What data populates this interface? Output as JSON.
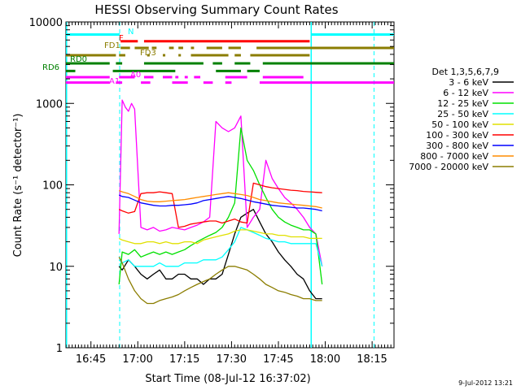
{
  "chart_data": {
    "type": "line",
    "title": "HESSI Observing Summary Count Rates",
    "xlabel": "Start Time (08-Jul-12 16:37:02)",
    "ylabel": "Count Rate (s⁻¹ detector⁻¹)",
    "y_scale": "log",
    "ylim": [
      1,
      10000
    ],
    "xlim_minutes": [
      0,
      105
    ],
    "x_ticks": [
      {
        "t": 7.97,
        "label": "16:45"
      },
      {
        "t": 22.97,
        "label": "17:00"
      },
      {
        "t": 37.97,
        "label": "17:15"
      },
      {
        "t": 52.97,
        "label": "17:30"
      },
      {
        "t": 67.97,
        "label": "17:45"
      },
      {
        "t": 82.97,
        "label": "18:00"
      },
      {
        "t": 97.97,
        "label": "18:15"
      }
    ],
    "y_ticks": [
      {
        "v": 1,
        "label": "1"
      },
      {
        "v": 10,
        "label": "10"
      },
      {
        "v": 100,
        "label": "100"
      },
      {
        "v": 1000,
        "label": "1000"
      },
      {
        "v": 10000,
        "label": "10000"
      }
    ],
    "grid": false,
    "legend_title": "Det 1,3,5,6,7,9",
    "legend_position": "right",
    "series": [
      {
        "name": "3 - 6 keV",
        "color": "#000000",
        "x": [
          17,
          18,
          20,
          22,
          24,
          26,
          28,
          30,
          32,
          34,
          36,
          38,
          40,
          42,
          44,
          46,
          48,
          50,
          52,
          54,
          56,
          58,
          60,
          62,
          64,
          66,
          68,
          70,
          72,
          74,
          76,
          78,
          80,
          82
        ],
        "y": [
          10,
          9,
          12,
          10,
          8,
          7,
          8,
          9,
          7,
          7,
          8,
          8,
          7,
          7,
          6,
          7,
          7,
          8,
          14,
          25,
          40,
          45,
          50,
          35,
          25,
          20,
          15,
          12,
          10,
          8,
          7,
          5,
          4,
          4
        ]
      },
      {
        "name": "6 - 12 keV",
        "color": "#ff00ff",
        "x": [
          17,
          18,
          19,
          20,
          21,
          22,
          24,
          26,
          28,
          30,
          32,
          34,
          36,
          38,
          40,
          42,
          44,
          46,
          48,
          50,
          52,
          54,
          56,
          58,
          60,
          62,
          64,
          66,
          68,
          70,
          72,
          74,
          76,
          78,
          80,
          82
        ],
        "y": [
          25,
          1100,
          900,
          800,
          1000,
          850,
          30,
          28,
          30,
          27,
          28,
          30,
          29,
          28,
          30,
          32,
          35,
          40,
          600,
          500,
          450,
          500,
          700,
          30,
          40,
          50,
          200,
          120,
          90,
          70,
          60,
          50,
          40,
          30,
          25,
          10
        ]
      },
      {
        "name": "12 - 25 keV",
        "color": "#00e000",
        "x": [
          17,
          18,
          20,
          22,
          24,
          26,
          28,
          30,
          32,
          34,
          36,
          38,
          40,
          42,
          44,
          46,
          48,
          50,
          52,
          54,
          56,
          58,
          60,
          62,
          64,
          66,
          68,
          70,
          72,
          74,
          76,
          78,
          80,
          82
        ],
        "y": [
          6,
          15,
          14,
          16,
          13,
          14,
          15,
          14,
          15,
          14,
          15,
          16,
          18,
          20,
          22,
          24,
          26,
          30,
          40,
          60,
          500,
          200,
          150,
          100,
          70,
          50,
          40,
          35,
          32,
          30,
          28,
          28,
          25,
          6
        ]
      },
      {
        "name": "25 - 50 keV",
        "color": "#00ffff",
        "x": [
          17,
          18,
          20,
          22,
          24,
          26,
          28,
          30,
          32,
          34,
          36,
          38,
          40,
          42,
          44,
          46,
          48,
          50,
          52,
          54,
          56,
          58,
          60,
          62,
          64,
          66,
          68,
          70,
          72,
          74,
          76,
          78,
          80,
          82
        ],
        "y": [
          12,
          11,
          12,
          10,
          10,
          10,
          10,
          11,
          10,
          10,
          10,
          11,
          11,
          11,
          12,
          12,
          12,
          13,
          16,
          20,
          30,
          28,
          26,
          24,
          22,
          21,
          20,
          20,
          19,
          19,
          19,
          19,
          19,
          10
        ]
      },
      {
        "name": "50 - 100 keV",
        "color": "#e0e000",
        "x": [
          17,
          18,
          20,
          22,
          24,
          26,
          28,
          30,
          32,
          34,
          36,
          38,
          40,
          42,
          44,
          46,
          48,
          50,
          52,
          54,
          56,
          58,
          60,
          62,
          64,
          66,
          68,
          70,
          72,
          74,
          76,
          78,
          80,
          82
        ],
        "y": [
          22,
          21,
          20,
          19,
          19,
          20,
          20,
          19,
          20,
          19,
          19,
          20,
          20,
          19,
          21,
          22,
          23,
          24,
          25,
          27,
          28,
          28,
          27,
          26,
          25,
          25,
          24,
          24,
          23,
          23,
          23,
          22,
          22,
          22
        ]
      },
      {
        "name": "100 - 300 keV",
        "color": "#ff0000",
        "x": [
          17,
          18,
          20,
          22,
          24,
          26,
          28,
          30,
          32,
          34,
          36,
          38,
          40,
          42,
          44,
          46,
          48,
          50,
          52,
          54,
          56,
          58,
          60,
          62,
          64,
          66,
          68,
          70,
          72,
          74,
          76,
          78,
          80,
          82
        ],
        "y": [
          50,
          48,
          45,
          47,
          78,
          80,
          80,
          82,
          80,
          78,
          30,
          31,
          33,
          34,
          35,
          36,
          36,
          34,
          36,
          38,
          35,
          34,
          105,
          100,
          95,
          92,
          90,
          88,
          86,
          85,
          83,
          82,
          81,
          80
        ]
      },
      {
        "name": "300 - 800 keV",
        "color": "#0000ff",
        "x": [
          17,
          18,
          20,
          22,
          24,
          26,
          28,
          30,
          32,
          34,
          36,
          38,
          40,
          42,
          44,
          46,
          48,
          50,
          52,
          54,
          56,
          58,
          60,
          62,
          64,
          66,
          68,
          70,
          72,
          74,
          76,
          78,
          80,
          82
        ],
        "y": [
          75,
          72,
          70,
          65,
          60,
          58,
          56,
          55,
          55,
          56,
          56,
          57,
          58,
          60,
          64,
          66,
          68,
          70,
          72,
          70,
          68,
          65,
          62,
          60,
          58,
          56,
          55,
          54,
          53,
          52,
          52,
          51,
          50,
          48
        ]
      },
      {
        "name": "800 - 7000 keV",
        "color": "#ff8c00",
        "x": [
          17,
          18,
          20,
          22,
          24,
          26,
          28,
          30,
          32,
          34,
          36,
          38,
          40,
          42,
          44,
          46,
          48,
          50,
          52,
          54,
          56,
          58,
          60,
          62,
          64,
          66,
          68,
          70,
          72,
          74,
          76,
          78,
          80,
          82
        ],
        "y": [
          85,
          82,
          78,
          72,
          66,
          63,
          62,
          62,
          63,
          64,
          65,
          66,
          68,
          70,
          72,
          74,
          76,
          78,
          80,
          78,
          76,
          74,
          70,
          66,
          64,
          62,
          60,
          59,
          58,
          57,
          56,
          55,
          54,
          52
        ]
      },
      {
        "name": "7000 - 20000 keV",
        "color": "#8b7d00",
        "x": [
          17,
          18,
          20,
          22,
          24,
          26,
          28,
          30,
          32,
          34,
          36,
          38,
          40,
          42,
          44,
          46,
          48,
          50,
          52,
          54,
          56,
          58,
          60,
          62,
          64,
          66,
          68,
          70,
          72,
          74,
          76,
          78,
          80,
          82
        ],
        "y": [
          13,
          11,
          7,
          5,
          4,
          3.5,
          3.5,
          3.8,
          4,
          4.2,
          4.5,
          5,
          5.5,
          6,
          6.5,
          7,
          8,
          9,
          10,
          10,
          9.5,
          9,
          8,
          7,
          6,
          5.5,
          5,
          4.8,
          4.5,
          4.3,
          4,
          4,
          3.8,
          3.8
        ]
      }
    ],
    "night_intervals": [
      [
        0,
        0.2
      ],
      [
        78.5,
        105
      ]
    ],
    "saa_markers": [
      17.2,
      98.6
    ],
    "flag_labels": [
      {
        "label": "N",
        "color": "#00ffff"
      },
      {
        "label": "F",
        "color": "#ff0000"
      },
      {
        "label": "FD1",
        "color": "#8b7d00"
      },
      {
        "label": "FD3",
        "color": "#8b7d00"
      },
      {
        "label": "RD0",
        "color": "#008000"
      },
      {
        "label": "RD6",
        "color": "#008000"
      },
      {
        "label": "A0",
        "color": "#ff00ff"
      },
      {
        "label": "A1",
        "color": "#ff00ff"
      }
    ],
    "flag_bars": [
      {
        "color": "#00ffff",
        "value": 7000,
        "segments": [
          [
            0,
            17.2
          ],
          [
            78.5,
            105
          ]
        ]
      },
      {
        "color": "#ff0000",
        "value": 5800,
        "segments": [
          [
            17.5,
            23
          ],
          [
            25,
            78
          ]
        ]
      },
      {
        "color": "#8b7d00",
        "value": 4800,
        "segments": [
          [
            17.5,
            20.5
          ],
          [
            22,
            26.5
          ],
          [
            27.5,
            29
          ],
          [
            33,
            34.5
          ],
          [
            36,
            37.5
          ],
          [
            40,
            41
          ],
          [
            45,
            50
          ],
          [
            52,
            56
          ],
          [
            61,
            105
          ]
        ]
      },
      {
        "color": "#8b7d00",
        "value": 3900,
        "segments": [
          [
            0,
            16
          ],
          [
            17,
            19
          ],
          [
            26,
            26.8
          ],
          [
            31,
            31.8
          ],
          [
            36,
            36.8
          ],
          [
            40,
            52
          ],
          [
            54,
            56
          ],
          [
            59,
            78
          ]
        ]
      },
      {
        "color": "#008000",
        "value": 3100,
        "segments": [
          [
            0,
            14
          ],
          [
            16,
            18
          ],
          [
            25,
            44
          ],
          [
            47,
            50
          ],
          [
            54,
            59
          ],
          [
            63,
            105
          ]
        ]
      },
      {
        "color": "#008000",
        "value": 2500,
        "segments": [
          [
            0,
            3
          ],
          [
            15,
            35
          ],
          [
            48,
            56
          ],
          [
            58,
            62
          ]
        ]
      },
      {
        "color": "#ff00ff",
        "value": 2100,
        "segments": [
          [
            0,
            14
          ],
          [
            17,
            22
          ],
          [
            25,
            28
          ],
          [
            31,
            34
          ],
          [
            35,
            36
          ],
          [
            38,
            39
          ],
          [
            41,
            43
          ],
          [
            51,
            58
          ],
          [
            63,
            76
          ]
        ]
      },
      {
        "color": "#ff00ff",
        "value": 1800,
        "segments": [
          [
            0,
            14
          ],
          [
            16,
            18
          ],
          [
            24,
            27
          ],
          [
            34,
            39
          ],
          [
            44,
            47
          ],
          [
            51,
            53
          ],
          [
            62,
            105
          ]
        ]
      }
    ]
  },
  "timestamp": "9-Jul-2012 13:21"
}
